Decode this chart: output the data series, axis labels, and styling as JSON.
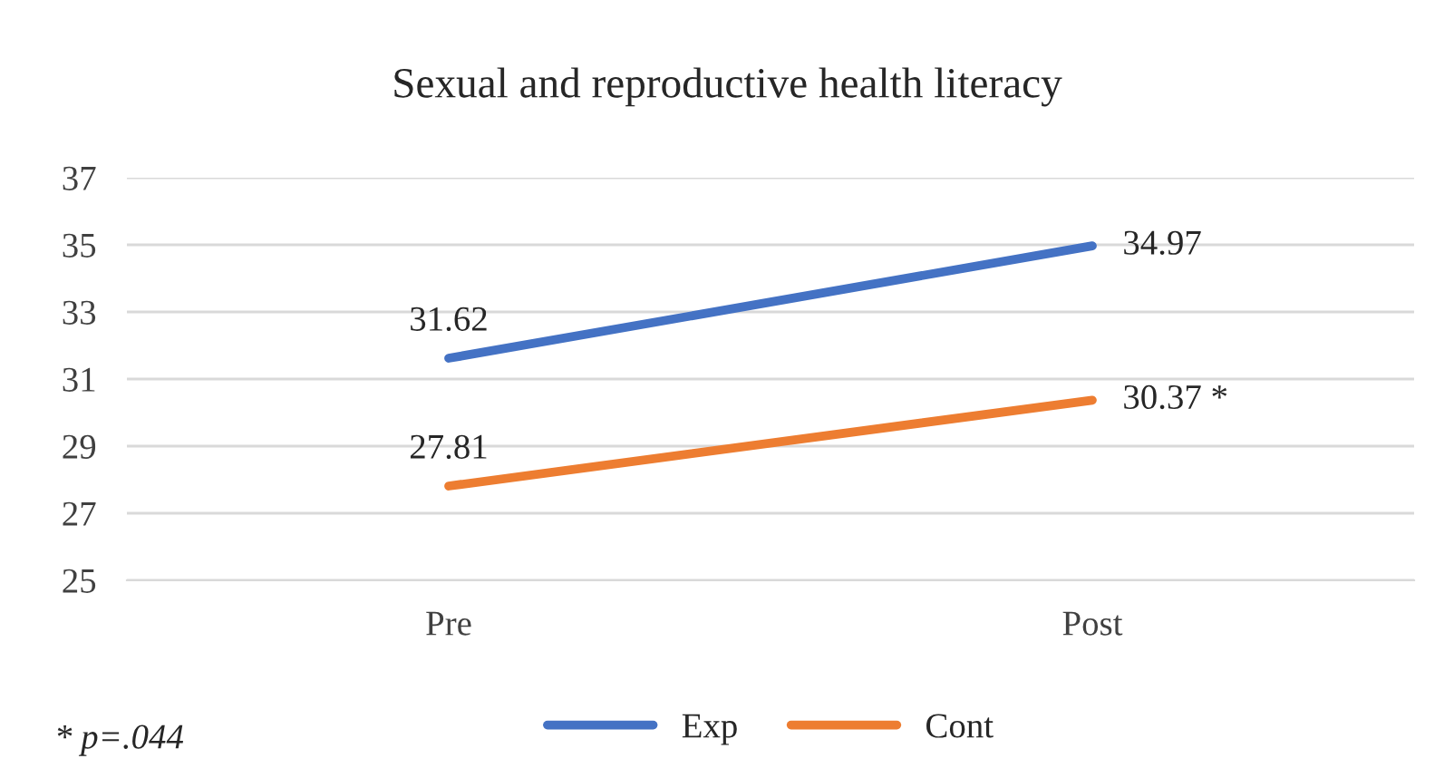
{
  "chart_data": {
    "type": "line",
    "title": "Sexual and reproductive health literacy",
    "categories": [
      "Pre",
      "Post"
    ],
    "series": [
      {
        "name": "Exp",
        "color": "#4472c4",
        "values": [
          31.62,
          34.97
        ],
        "value_labels": [
          "31.62",
          "34.97"
        ]
      },
      {
        "name": "Cont",
        "color": "#ed7d31",
        "values": [
          27.81,
          30.37
        ],
        "value_labels": [
          "27.81",
          "30.37 *"
        ]
      }
    ],
    "ylim": [
      25,
      37
    ],
    "yticks": [
      25,
      27,
      29,
      31,
      33,
      35,
      37
    ],
    "grid": "y",
    "legend": "bottom",
    "marker": "none",
    "line_style": "solid",
    "annotations": [
      "* p=.044"
    ]
  }
}
